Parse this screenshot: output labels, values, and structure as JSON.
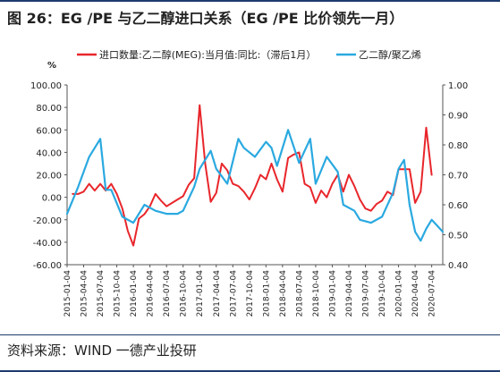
{
  "figure": {
    "title": "图 26：EG /PE 与乙二醇进口关系（EG /PE 比价领先一月）",
    "source": "资料来源：WIND 一德产业投研"
  },
  "chart_data": {
    "type": "line",
    "y_unit_label": "%",
    "left_axis": {
      "min": -60,
      "max": 100,
      "ticks": [
        "100.00",
        "80.00",
        "60.00",
        "40.00",
        "20.00",
        "0.00",
        "-20.00",
        "-40.00",
        "-60.00"
      ]
    },
    "right_axis": {
      "min": 0.4,
      "max": 1.0,
      "ticks": [
        "1.00",
        "0.90",
        "0.80",
        "0.70",
        "0.60",
        "0.50",
        "0.40"
      ]
    },
    "x_range": [
      "2015-01",
      "2020-09"
    ],
    "x_ticks": [
      "2015-01-04",
      "2015-04-04",
      "2015-07-04",
      "2015-10-04",
      "2016-01-04",
      "2016-04-04",
      "2016-07-04",
      "2016-10-04",
      "2017-01-04",
      "2017-04-04",
      "2017-07-04",
      "2017-10-04",
      "2018-01-04",
      "2018-04-04",
      "2018-07-04",
      "2018-10-04",
      "2019-01-04",
      "2019-04-04",
      "2019-07-04",
      "2019-10-04",
      "2020-01-04",
      "2020-04-04",
      "2020-07-04"
    ],
    "legend_position": "top",
    "series": [
      {
        "name": "进口数量:乙二醇(MEG):当月值:同比:（滞后1月）",
        "axis": "left",
        "color": "#e8262b",
        "x": [
          "2015-02",
          "2015-03",
          "2015-04",
          "2015-05",
          "2015-06",
          "2015-07",
          "2015-08",
          "2015-09",
          "2015-10",
          "2015-11",
          "2015-12",
          "2016-01",
          "2016-02",
          "2016-03",
          "2016-04",
          "2016-05",
          "2016-06",
          "2016-07",
          "2016-08",
          "2016-09",
          "2016-10",
          "2016-11",
          "2016-12",
          "2017-01",
          "2017-02",
          "2017-03",
          "2017-04",
          "2017-05",
          "2017-06",
          "2017-07",
          "2017-08",
          "2017-09",
          "2017-10",
          "2017-11",
          "2017-12",
          "2018-01",
          "2018-02",
          "2018-03",
          "2018-04",
          "2018-05",
          "2018-06",
          "2018-07",
          "2018-08",
          "2018-09",
          "2018-10",
          "2018-11",
          "2018-12",
          "2019-01",
          "2019-02",
          "2019-03",
          "2019-04",
          "2019-05",
          "2019-06",
          "2019-07",
          "2019-08",
          "2019-09",
          "2019-10",
          "2019-11",
          "2019-12",
          "2020-01",
          "2020-02",
          "2020-03",
          "2020-04",
          "2020-05",
          "2020-06",
          "2020-07"
        ],
        "y": [
          3,
          3,
          5,
          12,
          6,
          12,
          6,
          12,
          3,
          -10,
          -30,
          -43,
          -19,
          -15,
          -8,
          3,
          -3,
          -8,
          -5,
          -2,
          1,
          11,
          17,
          82,
          30,
          -4,
          4,
          30,
          24,
          12,
          10,
          5,
          -2,
          8,
          20,
          16,
          30,
          16,
          5,
          35,
          38,
          40,
          12,
          9,
          -5,
          6,
          0,
          12,
          20,
          5,
          20,
          10,
          -2,
          -10,
          -12,
          -6,
          -3,
          5,
          2,
          25,
          25,
          25,
          -5,
          5,
          62,
          20
        ]
      },
      {
        "name": "乙二醇/聚乙烯",
        "axis": "right",
        "color": "#2aa9e0",
        "x": [
          "2015-01",
          "2015-03",
          "2015-05",
          "2015-07",
          "2015-08",
          "2015-09",
          "2015-11",
          "2016-01",
          "2016-03",
          "2016-05",
          "2016-07",
          "2016-09",
          "2016-10",
          "2016-12",
          "2017-01",
          "2017-03",
          "2017-04",
          "2017-06",
          "2017-08",
          "2017-09",
          "2017-11",
          "2018-01",
          "2018-02",
          "2018-03",
          "2018-05",
          "2018-07",
          "2018-09",
          "2018-10",
          "2018-12",
          "2019-02",
          "2019-03",
          "2019-05",
          "2019-06",
          "2019-08",
          "2019-10",
          "2019-12",
          "2020-01",
          "2020-02",
          "2020-03",
          "2020-04",
          "2020-05",
          "2020-06",
          "2020-07",
          "2020-08",
          "2020-09"
        ],
        "y": [
          0.57,
          0.66,
          0.76,
          0.82,
          0.65,
          0.65,
          0.56,
          0.54,
          0.6,
          0.58,
          0.57,
          0.57,
          0.58,
          0.66,
          0.72,
          0.78,
          0.72,
          0.67,
          0.82,
          0.79,
          0.76,
          0.81,
          0.79,
          0.73,
          0.85,
          0.74,
          0.82,
          0.67,
          0.76,
          0.71,
          0.6,
          0.58,
          0.55,
          0.54,
          0.56,
          0.64,
          0.72,
          0.75,
          0.6,
          0.51,
          0.48,
          0.52,
          0.55,
          0.53,
          0.51
        ]
      }
    ]
  }
}
